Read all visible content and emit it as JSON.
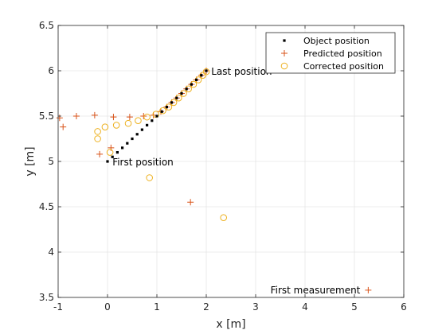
{
  "chart_data": {
    "type": "scatter",
    "xlabel": "x [m]",
    "ylabel": "y [m]",
    "xlim": [
      -1,
      6
    ],
    "ylim": [
      3.5,
      6.5
    ],
    "xticks": [
      -1,
      0,
      1,
      2,
      3,
      4,
      5,
      6
    ],
    "yticks": [
      3.5,
      4,
      4.5,
      5,
      5.5,
      6,
      6.5
    ],
    "grid": true,
    "legend_position": "top-right",
    "series": [
      {
        "name": "Object position",
        "marker": "square",
        "color": "#000000",
        "points": [
          [
            0.0,
            5.0
          ],
          [
            0.1,
            5.05
          ],
          [
            0.2,
            5.1
          ],
          [
            0.3,
            5.15
          ],
          [
            0.4,
            5.2
          ],
          [
            0.5,
            5.25
          ],
          [
            0.6,
            5.3
          ],
          [
            0.7,
            5.35
          ],
          [
            0.8,
            5.4
          ],
          [
            0.9,
            5.45
          ],
          [
            1.0,
            5.5
          ],
          [
            1.1,
            5.55
          ],
          [
            1.2,
            5.6
          ],
          [
            1.3,
            5.65
          ],
          [
            1.4,
            5.7
          ],
          [
            1.5,
            5.75
          ],
          [
            1.6,
            5.8
          ],
          [
            1.7,
            5.85
          ],
          [
            1.8,
            5.9
          ],
          [
            1.9,
            5.95
          ],
          [
            2.0,
            6.0
          ]
        ]
      },
      {
        "name": "Predicted position",
        "marker": "plus",
        "color": "#d95319",
        "points": [
          [
            5.28,
            3.58
          ],
          [
            1.68,
            4.55
          ],
          [
            -0.16,
            5.08
          ],
          [
            0.07,
            5.15
          ],
          [
            -0.9,
            5.38
          ],
          [
            -0.97,
            5.48
          ],
          [
            -0.63,
            5.5
          ],
          [
            -0.26,
            5.51
          ],
          [
            0.12,
            5.49
          ],
          [
            0.45,
            5.49
          ],
          [
            0.73,
            5.5
          ],
          [
            0.93,
            5.51
          ],
          [
            1.08,
            5.55
          ],
          [
            1.2,
            5.6
          ],
          [
            1.3,
            5.65
          ],
          [
            1.4,
            5.7
          ],
          [
            1.5,
            5.75
          ],
          [
            1.6,
            5.8
          ],
          [
            1.7,
            5.85
          ],
          [
            1.8,
            5.9
          ],
          [
            1.9,
            5.95
          ],
          [
            2.0,
            6.0
          ]
        ]
      },
      {
        "name": "Corrected position",
        "marker": "circle",
        "color": "#edb120",
        "points": [
          [
            2.35,
            4.38
          ],
          [
            0.85,
            4.82
          ],
          [
            0.05,
            5.1
          ],
          [
            -0.2,
            5.25
          ],
          [
            -0.2,
            5.33
          ],
          [
            -0.05,
            5.38
          ],
          [
            0.18,
            5.4
          ],
          [
            0.42,
            5.42
          ],
          [
            0.62,
            5.45
          ],
          [
            0.8,
            5.49
          ],
          [
            0.98,
            5.52
          ],
          [
            1.12,
            5.56
          ],
          [
            1.24,
            5.6
          ],
          [
            1.34,
            5.65
          ],
          [
            1.44,
            5.7
          ],
          [
            1.54,
            5.75
          ],
          [
            1.64,
            5.8
          ],
          [
            1.74,
            5.85
          ],
          [
            1.84,
            5.9
          ],
          [
            1.93,
            5.95
          ],
          [
            2.0,
            5.99
          ]
        ]
      }
    ],
    "annotations": [
      {
        "text": "First position",
        "x": 0.1,
        "y": 4.99
      },
      {
        "text": "Last position",
        "x": 2.1,
        "y": 5.99
      },
      {
        "text": "First measurement",
        "x": 3.3,
        "y": 3.58
      }
    ]
  }
}
